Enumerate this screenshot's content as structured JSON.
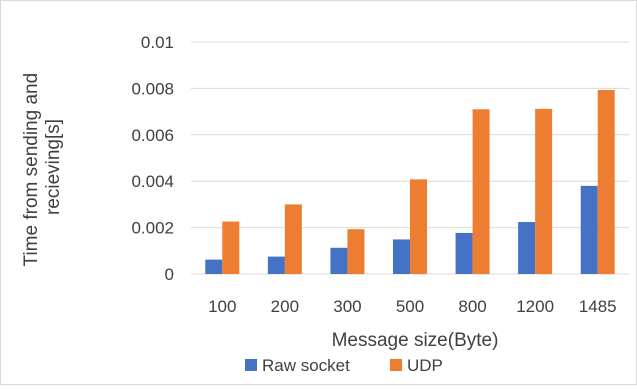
{
  "chart_data": {
    "type": "bar",
    "title": "",
    "xlabel": "Message size(Byte)",
    "ylabel_lines": [
      "Time from sending and",
      "recieving[s]"
    ],
    "ylim": [
      0,
      0.01
    ],
    "yticks": [
      "0",
      "0.002",
      "0.004",
      "0.006",
      "0.008",
      "0.01"
    ],
    "categories": [
      "100",
      "200",
      "300",
      "500",
      "800",
      "1200",
      "1485"
    ],
    "series": [
      {
        "name": "Raw socket",
        "color": "#4472c4",
        "values": [
          0.00062,
          0.00075,
          0.00113,
          0.00149,
          0.00177,
          0.00224,
          0.0038
        ]
      },
      {
        "name": "UDP",
        "color": "#ed7d31",
        "values": [
          0.00226,
          0.003,
          0.00193,
          0.00408,
          0.0071,
          0.00712,
          0.00793
        ]
      }
    ],
    "grid": true,
    "legend_position": "bottom"
  }
}
